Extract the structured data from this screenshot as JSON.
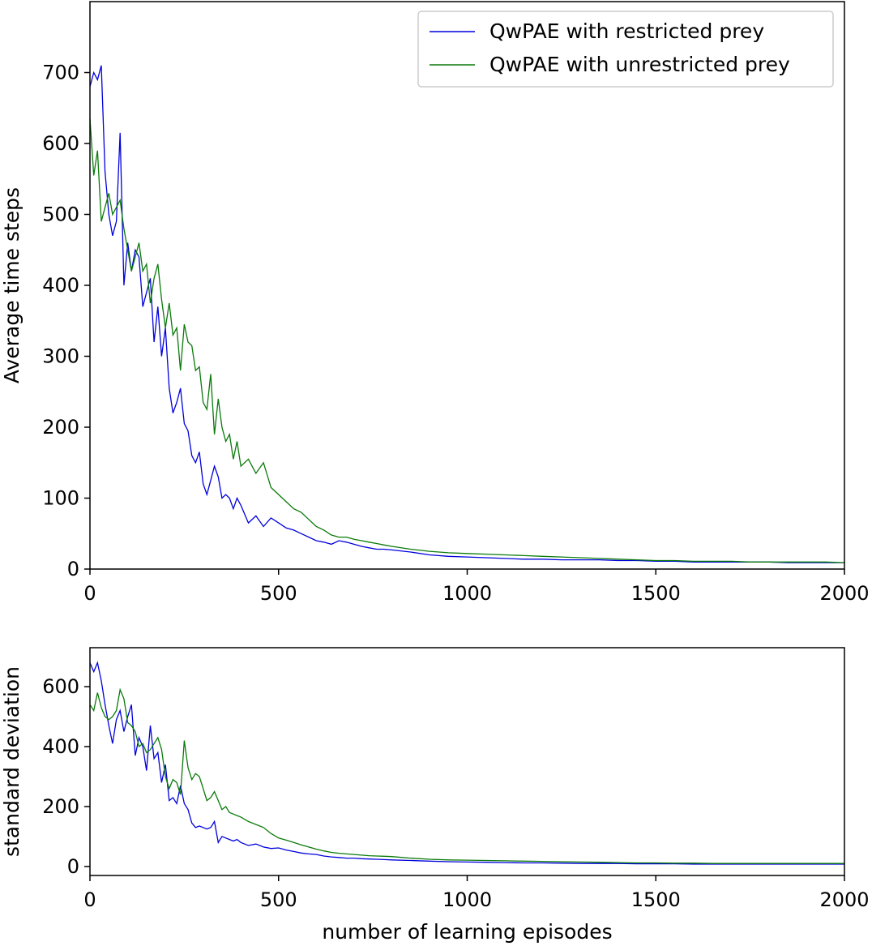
{
  "chart_data": [
    {
      "type": "line",
      "title": "",
      "xlabel": "",
      "ylabel": "Average time steps",
      "xlim": [
        0,
        2000
      ],
      "ylim": [
        0,
        800
      ],
      "xticks": [
        "0",
        "500",
        "1000",
        "1500",
        "2000"
      ],
      "yticks": [
        "0",
        "100",
        "200",
        "300",
        "400",
        "500",
        "600",
        "700"
      ],
      "grid": false,
      "legend": {
        "placement": "top-right"
      },
      "x": [
        0,
        10,
        20,
        30,
        40,
        50,
        60,
        70,
        80,
        90,
        100,
        110,
        120,
        130,
        140,
        150,
        160,
        170,
        180,
        190,
        200,
        210,
        220,
        230,
        240,
        250,
        260,
        270,
        280,
        290,
        300,
        310,
        320,
        330,
        340,
        350,
        360,
        370,
        380,
        390,
        400,
        420,
        440,
        460,
        480,
        500,
        520,
        540,
        560,
        580,
        600,
        620,
        640,
        660,
        680,
        700,
        720,
        740,
        760,
        780,
        800,
        850,
        900,
        950,
        1000,
        1050,
        1100,
        1150,
        1200,
        1250,
        1300,
        1350,
        1400,
        1450,
        1500,
        1550,
        1600,
        1650,
        1700,
        1750,
        1800,
        1850,
        1900,
        1950,
        2000
      ],
      "series": [
        {
          "name": "QwPAE with restricted prey",
          "color": "#0000dd",
          "values": [
            680,
            700,
            690,
            710,
            560,
            500,
            470,
            490,
            615,
            400,
            460,
            420,
            450,
            440,
            370,
            390,
            410,
            320,
            370,
            300,
            340,
            255,
            220,
            235,
            255,
            205,
            195,
            160,
            150,
            165,
            120,
            105,
            125,
            145,
            130,
            100,
            105,
            100,
            85,
            100,
            90,
            65,
            75,
            60,
            72,
            65,
            58,
            55,
            50,
            45,
            40,
            38,
            35,
            40,
            38,
            35,
            32,
            30,
            28,
            28,
            27,
            24,
            20,
            18,
            17,
            16,
            15,
            14,
            14,
            13,
            13,
            13,
            12,
            12,
            11,
            11,
            10,
            10,
            10,
            10,
            10,
            9,
            9,
            9,
            9
          ]
        },
        {
          "name": "QwPAE with unrestricted prey",
          "color": "#0a7a0a",
          "values": [
            635,
            555,
            590,
            490,
            510,
            530,
            500,
            510,
            520,
            480,
            450,
            420,
            440,
            460,
            420,
            430,
            375,
            410,
            430,
            380,
            340,
            375,
            330,
            340,
            280,
            345,
            320,
            315,
            280,
            285,
            235,
            225,
            275,
            190,
            240,
            200,
            180,
            190,
            155,
            180,
            145,
            155,
            135,
            150,
            115,
            105,
            95,
            85,
            80,
            70,
            60,
            55,
            48,
            45,
            45,
            42,
            40,
            38,
            36,
            34,
            32,
            28,
            25,
            23,
            22,
            21,
            20,
            19,
            18,
            17,
            16,
            15,
            14,
            13,
            12,
            12,
            11,
            11,
            11,
            10,
            10,
            10,
            10,
            10,
            9
          ]
        }
      ]
    },
    {
      "type": "line",
      "title": "",
      "xlabel": "number of learning episodes",
      "ylabel": "standard deviation",
      "xlim": [
        0,
        2000
      ],
      "ylim": [
        -30,
        730
      ],
      "xticks": [
        "0",
        "500",
        "1000",
        "1500",
        "2000"
      ],
      "yticks": [
        "0",
        "200",
        "400",
        "600"
      ],
      "grid": false,
      "x": [
        0,
        10,
        20,
        30,
        40,
        50,
        60,
        70,
        80,
        90,
        100,
        110,
        120,
        130,
        140,
        150,
        160,
        170,
        180,
        190,
        200,
        210,
        220,
        230,
        240,
        250,
        260,
        270,
        280,
        290,
        300,
        310,
        320,
        330,
        340,
        350,
        360,
        370,
        380,
        390,
        400,
        420,
        440,
        460,
        480,
        500,
        520,
        540,
        560,
        580,
        600,
        620,
        640,
        660,
        680,
        700,
        720,
        740,
        760,
        780,
        800,
        850,
        900,
        950,
        1000,
        1050,
        1100,
        1150,
        1200,
        1250,
        1300,
        1350,
        1400,
        1450,
        1500,
        1550,
        1600,
        1650,
        1700,
        1750,
        1800,
        1850,
        1900,
        1950,
        2000
      ],
      "series": [
        {
          "name": "QwPAE with restricted prey",
          "color": "#0000dd",
          "values": [
            680,
            650,
            680,
            620,
            540,
            470,
            410,
            490,
            520,
            450,
            500,
            540,
            370,
            430,
            400,
            320,
            470,
            360,
            380,
            280,
            340,
            220,
            230,
            210,
            270,
            210,
            190,
            145,
            130,
            135,
            130,
            125,
            130,
            150,
            80,
            100,
            95,
            90,
            85,
            90,
            80,
            70,
            75,
            65,
            60,
            62,
            55,
            50,
            45,
            42,
            40,
            35,
            32,
            30,
            28,
            28,
            26,
            25,
            24,
            23,
            22,
            20,
            18,
            16,
            15,
            14,
            13,
            12,
            12,
            11,
            10,
            10,
            10,
            9,
            9,
            9,
            8,
            8,
            8,
            8,
            8,
            8,
            8,
            8,
            8
          ]
        },
        {
          "name": "QwPAE with unrestricted prey",
          "color": "#0a7a0a",
          "values": [
            540,
            520,
            580,
            530,
            500,
            490,
            500,
            520,
            590,
            560,
            480,
            470,
            450,
            400,
            410,
            380,
            390,
            410,
            430,
            390,
            300,
            260,
            290,
            280,
            240,
            420,
            330,
            290,
            310,
            300,
            260,
            220,
            230,
            250,
            220,
            190,
            200,
            180,
            175,
            170,
            165,
            150,
            140,
            130,
            110,
            95,
            88,
            80,
            72,
            65,
            58,
            52,
            47,
            44,
            42,
            40,
            38,
            36,
            35,
            34,
            33,
            28,
            24,
            22,
            21,
            20,
            19,
            18,
            17,
            16,
            15,
            14,
            13,
            12,
            12,
            11,
            11,
            10,
            10,
            10,
            10,
            10,
            10,
            10,
            10
          ]
        }
      ]
    }
  ]
}
